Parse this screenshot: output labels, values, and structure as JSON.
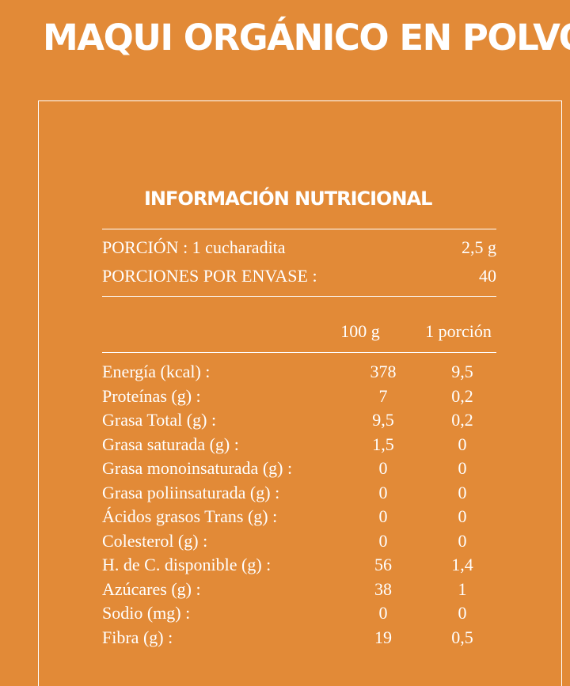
{
  "header": {
    "title": "MAQUI ORGÁNICO EN POLVO"
  },
  "panel": {
    "title": "INFORMACIÓN NUTRICIONAL",
    "serving": {
      "label": "PORCIÓN : 1 cucharadita",
      "value": "2,5 g"
    },
    "servings_per_container": {
      "label": "PORCIONES POR ENVASE :",
      "value": "40"
    },
    "columns": {
      "per_100": "100 g",
      "per_portion": "1 porción"
    },
    "rows": [
      {
        "label": "Energía (kcal) :",
        "per_100": "378",
        "per_portion": "9,5"
      },
      {
        "label": "Proteínas (g) :",
        "per_100": "7",
        "per_portion": "0,2"
      },
      {
        "label": "Grasa Total (g) :",
        "per_100": "9,5",
        "per_portion": "0,2"
      },
      {
        "label": "Grasa saturada (g) :",
        "per_100": "1,5",
        "per_portion": "0"
      },
      {
        "label": "Grasa monoinsaturada (g) :",
        "per_100": "0",
        "per_portion": "0"
      },
      {
        "label": "Grasa poliinsaturada (g) :",
        "per_100": "0",
        "per_portion": "0"
      },
      {
        "label": "Ácidos grasos Trans (g) :",
        "per_100": "0",
        "per_portion": "0"
      },
      {
        "label": "Colesterol (g) :",
        "per_100": "0",
        "per_portion": "0"
      },
      {
        "label": "H. de C. disponible (g) :",
        "per_100": "56",
        "per_portion": "1,4"
      },
      {
        "label": "Azúcares (g) :",
        "per_100": "38",
        "per_portion": "1"
      },
      {
        "label": "Sodio (mg) :",
        "per_100": "0",
        "per_portion": "0"
      },
      {
        "label": "Fibra (g) :",
        "per_100": "19",
        "per_portion": "0,5"
      }
    ]
  },
  "colors": {
    "background": "#e28a37",
    "text": "#ffffff"
  }
}
